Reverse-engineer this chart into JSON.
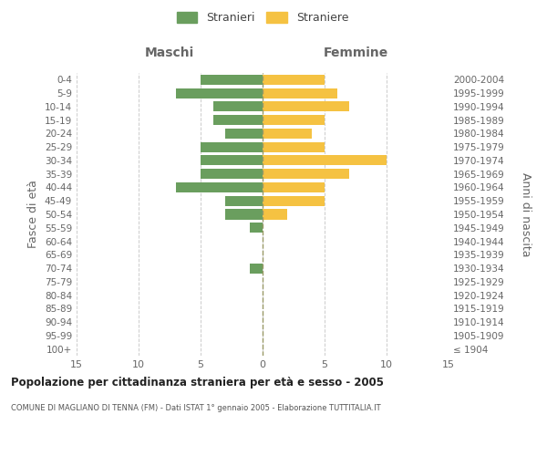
{
  "age_groups": [
    "100+",
    "95-99",
    "90-94",
    "85-89",
    "80-84",
    "75-79",
    "70-74",
    "65-69",
    "60-64",
    "55-59",
    "50-54",
    "45-49",
    "40-44",
    "35-39",
    "30-34",
    "25-29",
    "20-24",
    "15-19",
    "10-14",
    "5-9",
    "0-4"
  ],
  "birth_years": [
    "≤ 1904",
    "1905-1909",
    "1910-1914",
    "1915-1919",
    "1920-1924",
    "1925-1929",
    "1930-1934",
    "1935-1939",
    "1940-1944",
    "1945-1949",
    "1950-1954",
    "1955-1959",
    "1960-1964",
    "1965-1969",
    "1970-1974",
    "1975-1979",
    "1980-1984",
    "1985-1989",
    "1990-1994",
    "1995-1999",
    "2000-2004"
  ],
  "males": [
    0,
    0,
    0,
    0,
    0,
    0,
    1,
    0,
    0,
    1,
    3,
    3,
    7,
    5,
    5,
    5,
    3,
    4,
    4,
    7,
    5
  ],
  "females": [
    0,
    0,
    0,
    0,
    0,
    0,
    0,
    0,
    0,
    0,
    2,
    5,
    5,
    7,
    10,
    5,
    4,
    5,
    7,
    6,
    5
  ],
  "male_color": "#6a9e5e",
  "female_color": "#f5c242",
  "title_main": "Popolazione per cittadinanza straniera per età e sesso - 2005",
  "title_sub": "COMUNE DI MAGLIANO DI TENNA (FM) - Dati ISTAT 1° gennaio 2005 - Elaborazione TUTTITALIA.IT",
  "label_maschi": "Maschi",
  "label_femmine": "Femmine",
  "ylabel_left": "Fasce di età",
  "ylabel_right": "Anni di nascita",
  "legend_male": "Stranieri",
  "legend_female": "Straniere",
  "xlim": 15,
  "background_color": "#ffffff",
  "grid_color": "#cccccc",
  "bar_height": 0.75,
  "center_line_color": "#999966",
  "tick_label_color": "#666666",
  "title_color": "#222222",
  "subtitle_color": "#555555"
}
